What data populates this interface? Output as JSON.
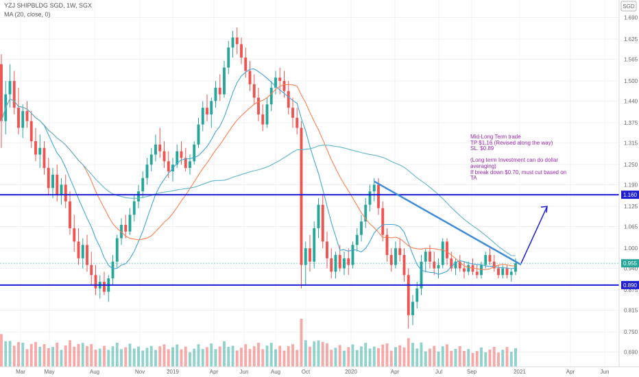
{
  "header": {
    "symbol": "YZJ SHIPBLDG SGD, 1W, SGX",
    "indicator": "MA (20, close, 0)",
    "currency": "SGD"
  },
  "annotation": {
    "lines": [
      "Mid-Long Term trade",
      "TP $1.16 (Revised along the way)",
      "SL. $0.89",
      "",
      "(Long term Investment can do dollar",
      "averaging)",
      "If break down $0.70, must cut based on",
      "TA"
    ]
  },
  "chart_data": {
    "type": "candlestick",
    "title": "YZJ SHIPBLDG SGD, 1W, SGX",
    "y_range": [
      0.646,
      1.742
    ],
    "y_ticks": [
      1.69,
      1.625,
      1.565,
      1.5,
      1.44,
      1.375,
      1.315,
      1.25,
      1.19,
      1.125,
      1.065,
      1.0,
      0.94,
      0.875,
      0.815,
      0.75,
      0.69
    ],
    "x_labels": [
      "Mar",
      "May",
      "Aug",
      "Nov",
      "2019",
      "Apr",
      "Jun",
      "Aug",
      "Oct",
      "2020",
      "Apr",
      "Jul",
      "Sep",
      "2021",
      "Apr",
      "Jun"
    ],
    "price_labels": [
      {
        "label": "1.160",
        "value": 1.16,
        "color": "#1f1fd1"
      },
      {
        "label": "0.955",
        "value": 0.955,
        "color": "#26a69a"
      },
      {
        "label": "0.890",
        "value": 0.89,
        "color": "#1f1fd1"
      }
    ],
    "horizontal_lines": [
      {
        "value": 1.16,
        "color": "#1a1ad6"
      },
      {
        "value": 0.89,
        "color": "#1a1ad6"
      }
    ],
    "last_price": 0.955,
    "trendline": {
      "from": {
        "x": "2020-01",
        "y": 1.2
      },
      "to": {
        "x": "2020-12",
        "y": 0.955
      }
    },
    "projection_arrow": {
      "from": 0.955,
      "to": 1.125
    },
    "candles_ohlc": [
      [
        1.55,
        1.58,
        1.3,
        1.38
      ],
      [
        1.38,
        1.5,
        1.34,
        1.46
      ],
      [
        1.46,
        1.55,
        1.42,
        1.5
      ],
      [
        1.5,
        1.53,
        1.4,
        1.42
      ],
      [
        1.42,
        1.48,
        1.34,
        1.36
      ],
      [
        1.36,
        1.43,
        1.33,
        1.41
      ],
      [
        1.41,
        1.44,
        1.36,
        1.38
      ],
      [
        1.38,
        1.41,
        1.3,
        1.32
      ],
      [
        1.32,
        1.36,
        1.26,
        1.28
      ],
      [
        1.28,
        1.34,
        1.24,
        1.3
      ],
      [
        1.3,
        1.32,
        1.22,
        1.24
      ],
      [
        1.24,
        1.27,
        1.16,
        1.18
      ],
      [
        1.18,
        1.24,
        1.15,
        1.22
      ],
      [
        1.22,
        1.25,
        1.14,
        1.16
      ],
      [
        1.16,
        1.21,
        1.13,
        1.19
      ],
      [
        1.19,
        1.22,
        1.12,
        1.14
      ],
      [
        1.14,
        1.17,
        1.04,
        1.06
      ],
      [
        1.06,
        1.1,
        0.99,
        1.02
      ],
      [
        1.02,
        1.06,
        0.95,
        0.97
      ],
      [
        0.97,
        1.03,
        0.94,
        1.01
      ],
      [
        1.01,
        1.04,
        0.93,
        0.95
      ],
      [
        0.95,
        0.99,
        0.89,
        0.92
      ],
      [
        0.92,
        0.95,
        0.86,
        0.88
      ],
      [
        0.88,
        0.92,
        0.85,
        0.9
      ],
      [
        0.9,
        0.93,
        0.86,
        0.87
      ],
      [
        0.87,
        0.92,
        0.84,
        0.91
      ],
      [
        0.91,
        0.98,
        0.89,
        0.96
      ],
      [
        0.96,
        1.04,
        0.94,
        1.03
      ],
      [
        1.03,
        1.09,
        1.01,
        1.07
      ],
      [
        1.07,
        1.1,
        1.03,
        1.05
      ],
      [
        1.05,
        1.12,
        1.04,
        1.1
      ],
      [
        1.1,
        1.16,
        1.08,
        1.14
      ],
      [
        1.14,
        1.19,
        1.12,
        1.17
      ],
      [
        1.17,
        1.23,
        1.15,
        1.21
      ],
      [
        1.21,
        1.27,
        1.19,
        1.25
      ],
      [
        1.25,
        1.3,
        1.23,
        1.28
      ],
      [
        1.28,
        1.34,
        1.26,
        1.31
      ],
      [
        1.31,
        1.36,
        1.27,
        1.29
      ],
      [
        1.29,
        1.32,
        1.24,
        1.26
      ],
      [
        1.26,
        1.29,
        1.21,
        1.23
      ],
      [
        1.23,
        1.27,
        1.2,
        1.25
      ],
      [
        1.25,
        1.31,
        1.24,
        1.29
      ],
      [
        1.29,
        1.32,
        1.25,
        1.27
      ],
      [
        1.27,
        1.3,
        1.23,
        1.24
      ],
      [
        1.24,
        1.28,
        1.22,
        1.26
      ],
      [
        1.26,
        1.32,
        1.25,
        1.31
      ],
      [
        1.31,
        1.39,
        1.3,
        1.37
      ],
      [
        1.37,
        1.44,
        1.35,
        1.42
      ],
      [
        1.42,
        1.46,
        1.38,
        1.4
      ],
      [
        1.4,
        1.45,
        1.36,
        1.44
      ],
      [
        1.44,
        1.5,
        1.42,
        1.48
      ],
      [
        1.48,
        1.52,
        1.44,
        1.46
      ],
      [
        1.46,
        1.56,
        1.45,
        1.54
      ],
      [
        1.54,
        1.62,
        1.52,
        1.6
      ],
      [
        1.6,
        1.65,
        1.57,
        1.63
      ],
      [
        1.63,
        1.66,
        1.58,
        1.61
      ],
      [
        1.61,
        1.63,
        1.55,
        1.57
      ],
      [
        1.57,
        1.6,
        1.51,
        1.53
      ],
      [
        1.53,
        1.56,
        1.47,
        1.49
      ],
      [
        1.49,
        1.52,
        1.43,
        1.45
      ],
      [
        1.45,
        1.48,
        1.38,
        1.4
      ],
      [
        1.4,
        1.43,
        1.35,
        1.37
      ],
      [
        1.37,
        1.45,
        1.36,
        1.43
      ],
      [
        1.43,
        1.5,
        1.41,
        1.48
      ],
      [
        1.48,
        1.53,
        1.46,
        1.51
      ],
      [
        1.51,
        1.54,
        1.46,
        1.5
      ],
      [
        1.5,
        1.53,
        1.45,
        1.47
      ],
      [
        1.47,
        1.5,
        1.4,
        1.42
      ],
      [
        1.42,
        1.45,
        1.36,
        1.39
      ],
      [
        1.39,
        1.42,
        1.34,
        1.36
      ],
      [
        1.36,
        1.38,
        0.88,
        0.95
      ],
      [
        0.95,
        1.02,
        0.89,
        1.0
      ],
      [
        1.0,
        1.04,
        0.93,
        0.96
      ],
      [
        0.96,
        1.08,
        0.94,
        1.06
      ],
      [
        1.06,
        1.15,
        1.03,
        1.13
      ],
      [
        1.13,
        1.16,
        1.0,
        1.02
      ],
      [
        1.02,
        1.05,
        0.94,
        0.97
      ],
      [
        0.97,
        1.0,
        0.91,
        0.93
      ],
      [
        0.93,
        0.99,
        0.91,
        0.98
      ],
      [
        0.98,
        1.01,
        0.93,
        0.94
      ],
      [
        0.94,
        0.99,
        0.92,
        0.97
      ],
      [
        0.97,
        1.0,
        0.92,
        0.95
      ],
      [
        0.95,
        1.02,
        0.94,
        1.01
      ],
      [
        1.01,
        1.06,
        0.99,
        1.04
      ],
      [
        1.04,
        1.1,
        1.02,
        1.08
      ],
      [
        1.08,
        1.15,
        1.06,
        1.13
      ],
      [
        1.13,
        1.19,
        1.11,
        1.17
      ],
      [
        1.17,
        1.21,
        1.14,
        1.19
      ],
      [
        1.19,
        1.21,
        1.1,
        1.12
      ],
      [
        1.12,
        1.14,
        1.02,
        1.04
      ],
      [
        1.04,
        1.06,
        0.96,
        0.98
      ],
      [
        0.98,
        1.0,
        0.93,
        0.95
      ],
      [
        0.95,
        1.02,
        0.94,
        1.0
      ],
      [
        1.0,
        1.03,
        0.96,
        0.98
      ],
      [
        0.98,
        1.0,
        0.9,
        0.92
      ],
      [
        0.92,
        0.94,
        0.76,
        0.8
      ],
      [
        0.8,
        0.86,
        0.77,
        0.84
      ],
      [
        0.84,
        0.9,
        0.82,
        0.88
      ],
      [
        0.88,
        0.98,
        0.86,
        0.96
      ],
      [
        0.96,
        1.0,
        0.93,
        0.99
      ],
      [
        0.99,
        1.01,
        0.94,
        0.96
      ],
      [
        0.96,
        0.99,
        0.92,
        0.94
      ],
      [
        0.94,
        0.97,
        0.91,
        0.95
      ],
      [
        0.95,
        1.03,
        0.94,
        1.02
      ],
      [
        1.02,
        1.03,
        0.95,
        0.97
      ],
      [
        0.97,
        0.99,
        0.93,
        0.94
      ],
      [
        0.94,
        0.97,
        0.92,
        0.96
      ],
      [
        0.96,
        0.98,
        0.93,
        0.94
      ],
      [
        0.94,
        0.96,
        0.91,
        0.93
      ],
      [
        0.93,
        0.96,
        0.92,
        0.95
      ],
      [
        0.95,
        0.97,
        0.92,
        0.93
      ],
      [
        0.93,
        0.95,
        0.91,
        0.92
      ],
      [
        0.92,
        0.96,
        0.91,
        0.95
      ],
      [
        0.95,
        0.99,
        0.94,
        0.98
      ],
      [
        0.98,
        1.0,
        0.95,
        0.96
      ],
      [
        0.96,
        0.98,
        0.93,
        0.94
      ],
      [
        0.94,
        0.95,
        0.91,
        0.92
      ],
      [
        0.92,
        0.95,
        0.91,
        0.94
      ],
      [
        0.94,
        0.95,
        0.91,
        0.92
      ],
      [
        0.92,
        0.94,
        0.9,
        0.93
      ],
      [
        0.93,
        0.97,
        0.92,
        0.955
      ]
    ],
    "ma20_color": "#ff7f50",
    "ma_secondary_colors": [
      "#42a5d6",
      "#5fb3c8"
    ]
  }
}
